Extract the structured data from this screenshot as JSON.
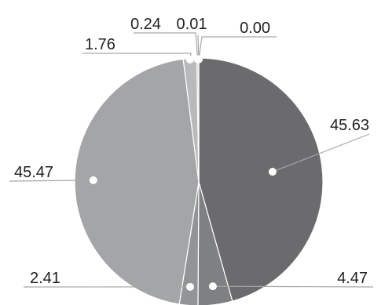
{
  "chart_data": {
    "type": "pie",
    "title": "",
    "legend": "none",
    "start_angle_deg": 0,
    "direction": "clockwise",
    "slices": [
      {
        "value": 45.63,
        "label": "45.63",
        "color": "#6b6b6d"
      },
      {
        "value": 4.47,
        "label": "4.47",
        "color": "#7f8082"
      },
      {
        "value": 2.41,
        "label": "2.41",
        "color": "#939496"
      },
      {
        "value": 45.47,
        "label": "45.47",
        "color": "#a4a5a7"
      },
      {
        "value": 1.76,
        "label": "1.76",
        "color": "#b8b9bb"
      },
      {
        "value": 0.24,
        "label": "0.24",
        "color": "#c9cacc"
      },
      {
        "value": 0.01,
        "label": "0.01",
        "color": "#d8d9da"
      },
      {
        "value": 0.0,
        "label": "0.00",
        "color": "#e4e5e6"
      }
    ],
    "slice_border_color": "#ffffff",
    "leader_color": "#a6a6a6"
  }
}
